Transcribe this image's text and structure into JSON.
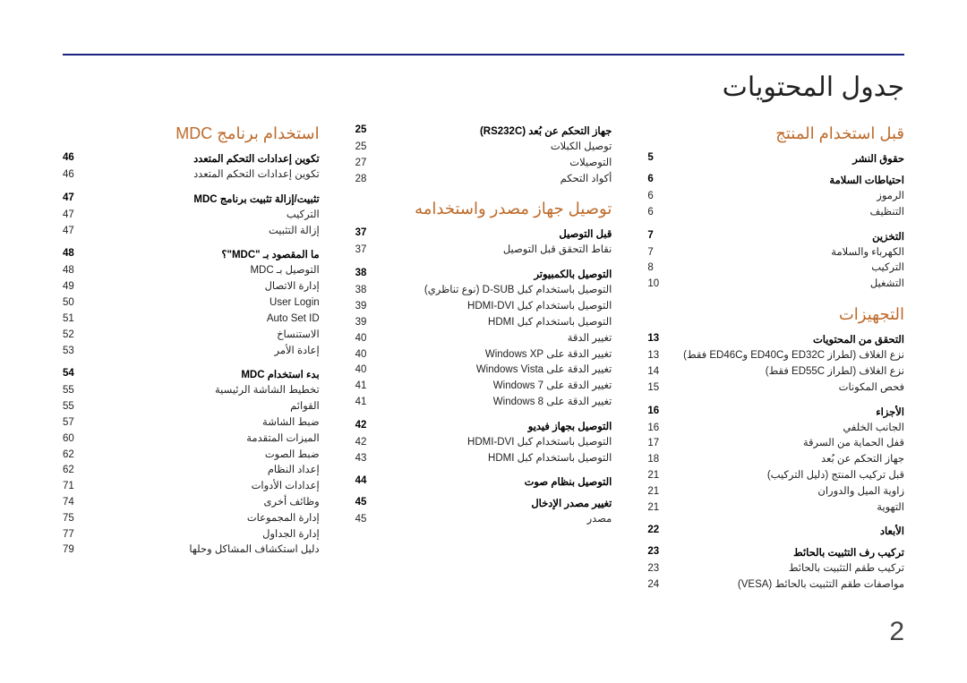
{
  "page": {
    "title": "جدول المحتويات",
    "number": "2",
    "rule_color": "#1a237e",
    "accent_color": "#bd6a2a"
  },
  "col1": {
    "sec1": {
      "title": "قبل استخدام المنتج"
    },
    "g1": {
      "label": "حقوق النشر",
      "pg": "5"
    },
    "g2": {
      "label": "احتياطات السلامة",
      "pg": "6"
    },
    "e2a": {
      "label": "الرموز",
      "pg": "6"
    },
    "e2b": {
      "label": "التنظيف",
      "pg": "6"
    },
    "g3": {
      "label": "التخزين",
      "pg": "7"
    },
    "e3a": {
      "label": "الكهرباء والسلامة",
      "pg": "7"
    },
    "e3b": {
      "label": "التركيب",
      "pg": "8"
    },
    "e3c": {
      "label": "التشغيل",
      "pg": "10"
    },
    "sec2": {
      "title": "التجهيزات"
    },
    "g4": {
      "label": "التحقق من المحتويات",
      "pg": "13"
    },
    "e4a": {
      "label": "نزع الغلاف (لطراز ED32C وED40C وED46C فقط)",
      "pg": "13"
    },
    "e4b": {
      "label": "نزع الغلاف (لطراز ED55C فقط)",
      "pg": "14"
    },
    "e4c": {
      "label": "فحص المكونات",
      "pg": "15"
    },
    "g5": {
      "label": "الأجزاء",
      "pg": "16"
    },
    "e5a": {
      "label": "الجانب الخلفي",
      "pg": "16"
    },
    "e5b": {
      "label": "قفل الحماية من السرقة",
      "pg": "17"
    },
    "e5c": {
      "label": "جهاز التحكم عن بُعد",
      "pg": "18"
    },
    "e5d": {
      "label": "قبل تركيب المنتج (دليل التركيب)",
      "pg": "21"
    },
    "e5e": {
      "label": "زاوية الميل والدوران",
      "pg": "21"
    },
    "e5f": {
      "label": "التهوية",
      "pg": "21"
    },
    "g6": {
      "label": "الأبعاد",
      "pg": "22"
    },
    "g7": {
      "label": "تركيب رف التثبيت بالحائط",
      "pg": "23"
    },
    "e7a": {
      "label": "تركيب طقم التثبيت بالحائط",
      "pg": "23"
    },
    "e7b": {
      "label": "مواصفات طقم التثبيت بالحائط (VESA)",
      "pg": "24"
    }
  },
  "col2": {
    "g1": {
      "label": "جهاز التحكم عن بُعد (RS232C)",
      "pg": "25"
    },
    "e1a": {
      "label": "توصيل الكبلات",
      "pg": "25"
    },
    "e1b": {
      "label": "التوصيلات",
      "pg": "27"
    },
    "e1c": {
      "label": "أكواد التحكم",
      "pg": "28"
    },
    "sec1": {
      "title": "توصيل جهاز مصدر واستخدامه"
    },
    "g2": {
      "label": "قبل التوصيل",
      "pg": "37"
    },
    "e2a": {
      "label": "نقاط التحقق قبل التوصيل",
      "pg": "37"
    },
    "g3": {
      "label": "التوصيل بالكمبيوتر",
      "pg": "38"
    },
    "e3a": {
      "label": "التوصيل باستخدام كبل D-SUB (نوع تناظري)",
      "pg": "38"
    },
    "e3b": {
      "label": "التوصيل باستخدام كبل HDMI-DVI",
      "pg": "39"
    },
    "e3c": {
      "label": "التوصيل باستخدام كبل HDMI",
      "pg": "39"
    },
    "e3d": {
      "label": "تغيير الدقة",
      "pg": "40"
    },
    "e3e": {
      "label": "تغيير الدقة على Windows XP",
      "pg": "40"
    },
    "e3f": {
      "label": "تغيير الدقة على Windows Vista",
      "pg": "40"
    },
    "e3g": {
      "label": "تغيير الدقة على Windows 7",
      "pg": "41"
    },
    "e3h": {
      "label": "تغيير الدقة على Windows 8",
      "pg": "41"
    },
    "g4": {
      "label": "التوصيل بجهاز فيديو",
      "pg": "42"
    },
    "e4a": {
      "label": "التوصيل باستخدام كبل HDMI-DVI",
      "pg": "42"
    },
    "e4b": {
      "label": "التوصيل باستخدام كبل HDMI",
      "pg": "43"
    },
    "g5": {
      "label": "التوصيل بنظام صوت",
      "pg": "44"
    },
    "g6": {
      "label": "تغيير مصدر الإدخال",
      "pg": "45"
    },
    "e6a": {
      "label": "مصدر",
      "pg": "45"
    }
  },
  "col3": {
    "sec1": {
      "title": "استخدام برنامج MDC"
    },
    "g1": {
      "label": "تكوين إعدادات التحكم المتعدد",
      "pg": "46"
    },
    "e1a": {
      "label": "تكوين إعدادات التحكم المتعدد",
      "pg": "46"
    },
    "g2": {
      "label": "تثبيت/إزالة تثبيت برنامج MDC",
      "pg": "47"
    },
    "e2a": {
      "label": "التركيب",
      "pg": "47"
    },
    "e2b": {
      "label": "إزالة التثبيت",
      "pg": "47"
    },
    "g3": {
      "label": "ما المقصود بـ \"MDC\"؟",
      "pg": "48"
    },
    "e3a": {
      "label": "التوصيل بـ MDC",
      "pg": "48"
    },
    "e3b": {
      "label": "إدارة الاتصال",
      "pg": "49"
    },
    "e3c": {
      "label": "User Login",
      "pg": "50"
    },
    "e3d": {
      "label": "Auto Set ID",
      "pg": "51"
    },
    "e3e": {
      "label": "الاستنساخ",
      "pg": "52"
    },
    "e3f": {
      "label": "إعادة الأمر",
      "pg": "53"
    },
    "g4": {
      "label": "بدء استخدام MDC",
      "pg": "54"
    },
    "e4a": {
      "label": "تخطيط الشاشة الرئيسية",
      "pg": "55"
    },
    "e4b": {
      "label": "القوائم",
      "pg": "55"
    },
    "e4c": {
      "label": "ضبط الشاشة",
      "pg": "57"
    },
    "e4d": {
      "label": "الميزات المتقدمة",
      "pg": "60"
    },
    "e4e": {
      "label": "ضبط الصوت",
      "pg": "62"
    },
    "e4f": {
      "label": "إعداد النظام",
      "pg": "62"
    },
    "e4g": {
      "label": "إعدادات الأدوات",
      "pg": "71"
    },
    "e4h": {
      "label": "وظائف أخرى",
      "pg": "74"
    },
    "e4i": {
      "label": "إدارة المجموعات",
      "pg": "75"
    },
    "e4j": {
      "label": "إدارة الجداول",
      "pg": "77"
    },
    "e4k": {
      "label": "دليل استكشاف المشاكل وحلها",
      "pg": "79"
    }
  }
}
